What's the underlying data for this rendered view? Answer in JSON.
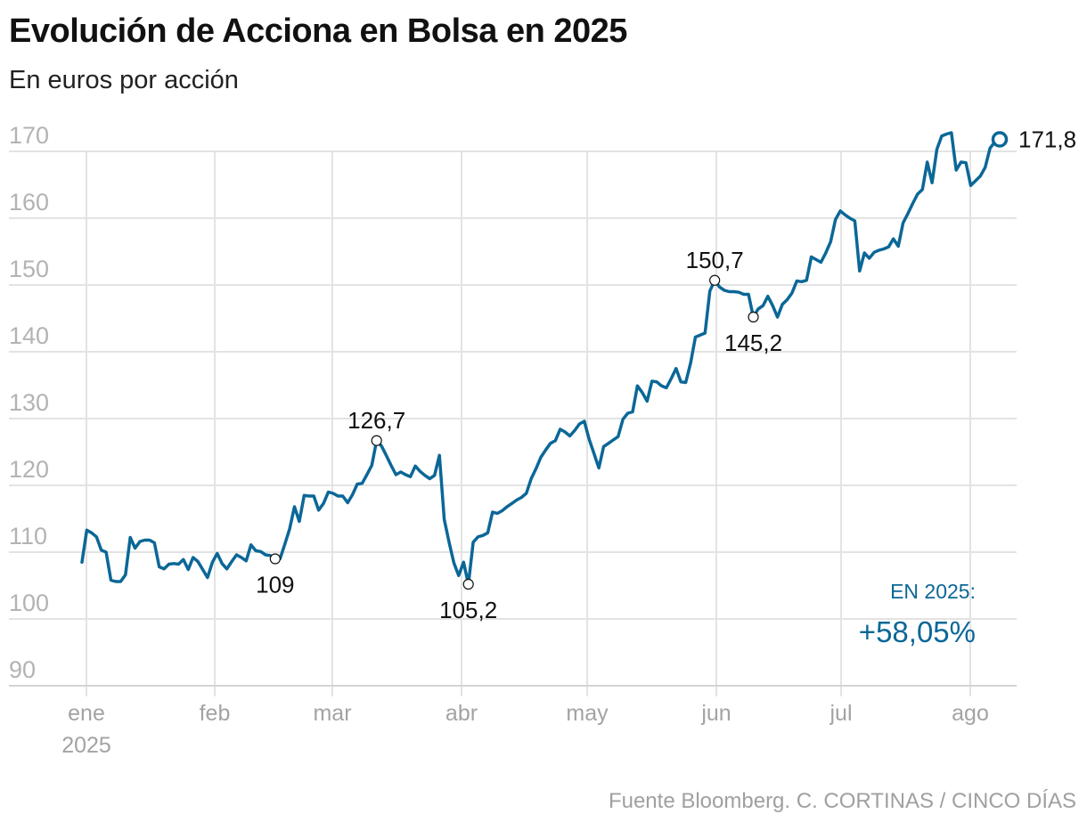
{
  "chart_data": {
    "type": "line",
    "title": "Evolución de Acciona en Bolsa en 2025",
    "subtitle": "En euros por acción",
    "source": "Fuente Bloomberg. C. CORTINAS / CINCO DÍAS",
    "ylim": [
      90,
      170
    ],
    "yticks": [
      "170",
      "160",
      "150",
      "140",
      "130",
      "120",
      "110",
      "100",
      "90"
    ],
    "xtick_labels": [
      "ene",
      "feb",
      "mar",
      "abr",
      "may",
      "jun",
      "jul",
      "ago"
    ],
    "x_year_label": "2025",
    "grid": true,
    "series": [
      {
        "values": [
          108.5,
          113.3,
          112.9,
          112.3,
          110.3,
          110.0,
          105.8,
          105.6,
          105.6,
          106.6,
          112.2,
          110.6,
          111.6,
          111.8,
          111.8,
          111.4,
          107.8,
          107.5,
          108.2,
          108.3,
          108.2,
          108.9,
          107.4,
          109.2,
          108.6,
          107.4,
          106.2,
          108.5,
          109.8,
          108.3,
          107.5,
          108.6,
          109.6,
          109.2,
          108.7,
          111.1,
          110.2,
          110.1,
          109.6,
          109.5,
          109.0,
          109.0,
          111.2,
          113.5,
          116.8,
          114.6,
          118.5,
          118.4,
          118.4,
          116.3,
          117.3,
          119.0,
          118.8,
          118.4,
          118.4,
          117.4,
          118.6,
          120.2,
          120.3,
          121.6,
          123.0,
          126.7,
          125.9,
          124.5,
          123.0,
          121.6,
          122.0,
          121.6,
          121.3,
          122.9,
          122.1,
          121.5,
          121.0,
          121.5,
          124.5,
          114.9,
          111.5,
          108.4,
          106.5,
          108.5,
          105.2,
          111.5,
          112.3,
          112.5,
          112.9,
          116.0,
          115.8,
          116.2,
          116.8,
          117.3,
          117.8,
          118.2,
          118.8,
          121.0,
          122.5,
          124.2,
          125.3,
          126.3,
          126.7,
          128.4,
          128.0,
          127.4,
          128.2,
          129.2,
          129.6,
          126.9,
          124.8,
          122.6,
          125.8,
          126.3,
          126.8,
          127.3,
          129.9,
          130.8,
          131.0,
          134.9,
          133.9,
          132.6,
          135.6,
          135.5,
          134.9,
          134.6,
          136.0,
          137.5,
          135.5,
          135.4,
          138.3,
          142.2,
          142.5,
          142.8,
          149.1,
          150.7,
          149.7,
          149.2,
          149.0,
          149.0,
          148.9,
          148.6,
          148.6,
          145.2,
          146.4,
          146.9,
          148.3,
          146.9,
          145.2,
          147.1,
          147.8,
          148.8,
          150.6,
          150.5,
          150.7,
          154.2,
          153.8,
          153.4,
          154.8,
          156.5,
          159.8,
          161.1,
          160.5,
          160.0,
          159.6,
          152.1,
          154.8,
          154.0,
          154.9,
          155.2,
          155.4,
          155.7,
          156.9,
          155.8,
          159.3,
          160.7,
          162.2,
          163.6,
          164.3,
          168.4,
          165.3,
          170.3,
          172.3,
          172.6,
          172.8,
          167.2,
          168.4,
          168.3,
          164.9,
          165.6,
          166.3,
          167.6,
          170.5,
          171.4,
          171.8
        ]
      }
    ],
    "annotations": [
      {
        "label": "109",
        "value": 109.0
      },
      {
        "label": "126,7",
        "value": 126.7
      },
      {
        "label": "105,2",
        "value": 105.2
      },
      {
        "label": "150,7",
        "value": 150.7
      },
      {
        "label": "145,2",
        "value": 145.2
      }
    ],
    "last_value_label": "171,8",
    "change": {
      "label": "EN 2025:",
      "value": "+58,05%"
    }
  }
}
